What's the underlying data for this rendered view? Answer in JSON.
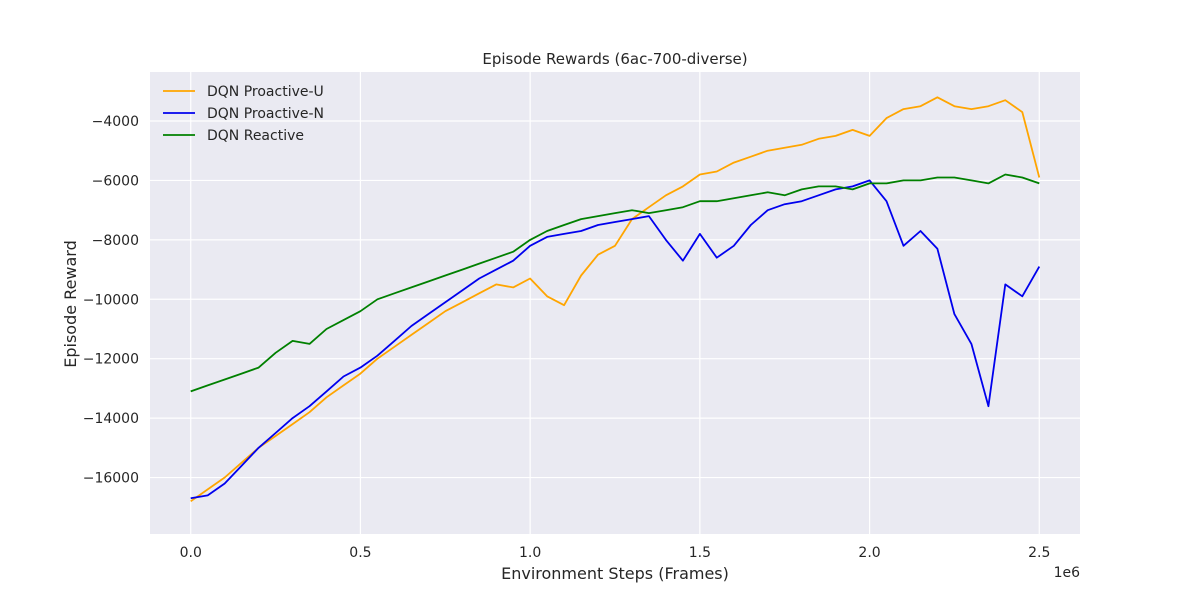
{
  "chart_data": {
    "type": "line",
    "title": "Episode Rewards (6ac-700-diverse)",
    "xlabel": "Environment Steps (Frames)",
    "ylabel": "Episode Reward",
    "x_offset_label": "1e6",
    "xlim": [
      -0.12,
      2.62
    ],
    "ylim": [
      -17900,
      -2350
    ],
    "x_ticks": [
      0.0,
      0.5,
      1.0,
      1.5,
      2.0,
      2.5
    ],
    "x_tick_labels": [
      "0.0",
      "0.5",
      "1.0",
      "1.5",
      "2.0",
      "2.5"
    ],
    "y_ticks": [
      -16000,
      -14000,
      -12000,
      -10000,
      -8000,
      -6000,
      -4000
    ],
    "y_tick_labels": [
      "−16000",
      "−14000",
      "−12000",
      "−10000",
      "−8000",
      "−6000",
      "−4000"
    ],
    "grid": true,
    "legend_position": "top-left",
    "x": [
      0.0,
      0.05,
      0.1,
      0.15,
      0.2,
      0.25,
      0.3,
      0.35,
      0.4,
      0.45,
      0.5,
      0.55,
      0.6,
      0.65,
      0.7,
      0.75,
      0.8,
      0.85,
      0.9,
      0.95,
      1.0,
      1.05,
      1.1,
      1.15,
      1.2,
      1.25,
      1.3,
      1.35,
      1.4,
      1.45,
      1.5,
      1.55,
      1.6,
      1.65,
      1.7,
      1.75,
      1.8,
      1.85,
      1.9,
      1.95,
      2.0,
      2.05,
      2.1,
      2.15,
      2.2,
      2.25,
      2.3,
      2.35,
      2.4,
      2.45,
      2.5
    ],
    "series": [
      {
        "name": "DQN Proactive-U",
        "color": "#FFA500",
        "values": [
          -16800,
          -16400,
          -16000,
          -15500,
          -15000,
          -14600,
          -14200,
          -13800,
          -13300,
          -12900,
          -12500,
          -12000,
          -11600,
          -11200,
          -10800,
          -10400,
          -10100,
          -9800,
          -9500,
          -9600,
          -9300,
          -9900,
          -10200,
          -9200,
          -8500,
          -8200,
          -7300,
          -6900,
          -6500,
          -6200,
          -5800,
          -5700,
          -5400,
          -5200,
          -5000,
          -4900,
          -4800,
          -4600,
          -4500,
          -4300,
          -4500,
          -3900,
          -3600,
          -3500,
          -3200,
          -3500,
          -3600,
          -3500,
          -3300,
          -3700,
          -5900
        ]
      },
      {
        "name": "DQN Proactive-N",
        "color": "#0000EE",
        "values": [
          -16700,
          -16600,
          -16200,
          -15600,
          -15000,
          -14500,
          -14000,
          -13600,
          -13100,
          -12600,
          -12300,
          -11900,
          -11400,
          -10900,
          -10500,
          -10100,
          -9700,
          -9300,
          -9000,
          -8700,
          -8200,
          -7900,
          -7800,
          -7700,
          -7500,
          -7400,
          -7300,
          -7200,
          -8000,
          -8700,
          -7800,
          -8600,
          -8200,
          -7500,
          -7000,
          -6800,
          -6700,
          -6500,
          -6300,
          -6200,
          -6000,
          -6700,
          -8200,
          -7700,
          -8300,
          -10500,
          -11500,
          -13600,
          -9500,
          -9900,
          -8900
        ]
      },
      {
        "name": "DQN Reactive",
        "color": "#008000",
        "values": [
          -13100,
          -12900,
          -12700,
          -12500,
          -12300,
          -11800,
          -11400,
          -11500,
          -11000,
          -10700,
          -10400,
          -10000,
          -9800,
          -9600,
          -9400,
          -9200,
          -9000,
          -8800,
          -8600,
          -8400,
          -8000,
          -7700,
          -7500,
          -7300,
          -7200,
          -7100,
          -7000,
          -7100,
          -7000,
          -6900,
          -6700,
          -6700,
          -6600,
          -6500,
          -6400,
          -6500,
          -6300,
          -6200,
          -6200,
          -6300,
          -6100,
          -6100,
          -6000,
          -6000,
          -5900,
          -5900,
          -6000,
          -6100,
          -5800,
          -5900,
          -6100
        ]
      }
    ]
  }
}
